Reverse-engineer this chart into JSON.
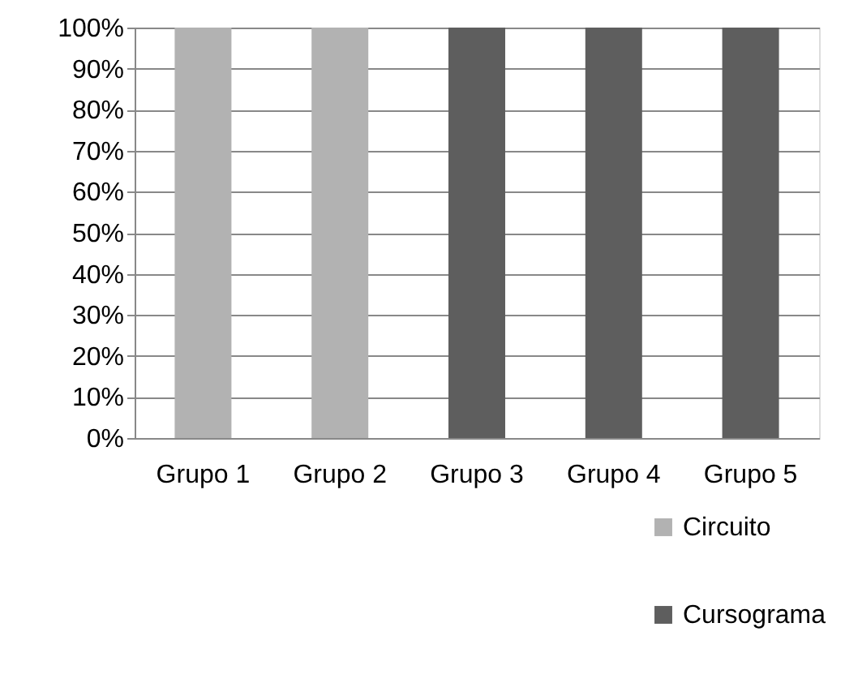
{
  "chart_data": {
    "type": "bar",
    "stacked": true,
    "categories": [
      "Grupo 1",
      "Grupo 2",
      "Grupo 3",
      "Grupo 4",
      "Grupo 5"
    ],
    "series": [
      {
        "name": "Circuito",
        "color": "#b2b2b2",
        "values": [
          100,
          100,
          0,
          0,
          0
        ]
      },
      {
        "name": "Cursograma",
        "color": "#5e5e5e",
        "values": [
          0,
          0,
          100,
          100,
          100
        ]
      }
    ],
    "ylim": [
      0,
      100
    ],
    "yticks": [
      {
        "value": 0,
        "label": "0%"
      },
      {
        "value": 10,
        "label": "10%"
      },
      {
        "value": 20,
        "label": "20%"
      },
      {
        "value": 30,
        "label": "30%"
      },
      {
        "value": 40,
        "label": "40%"
      },
      {
        "value": 50,
        "label": "50%"
      },
      {
        "value": 60,
        "label": "60%"
      },
      {
        "value": 70,
        "label": "70%"
      },
      {
        "value": 80,
        "label": "80%"
      },
      {
        "value": 90,
        "label": "90%"
      },
      {
        "value": 100,
        "label": "100%"
      }
    ],
    "grid": "y",
    "legend": "bottom right"
  }
}
